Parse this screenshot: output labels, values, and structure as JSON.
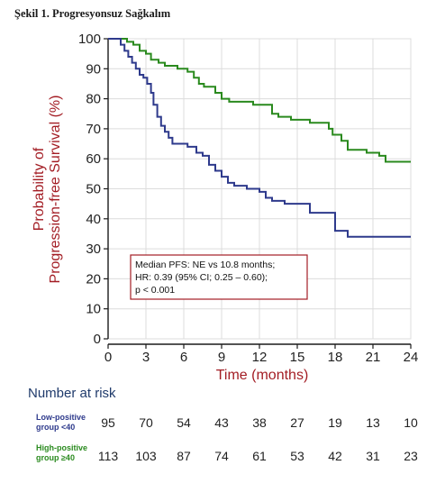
{
  "caption": "Şekil 1. Progresyonsuz Sağkalım",
  "chart_data": {
    "type": "line",
    "subtype": "kaplan-meier step",
    "ylabel_lines": [
      "Probability of",
      "Progression-free Survival  (%)"
    ],
    "xlabel": "Time (months)",
    "xlim": [
      0,
      24
    ],
    "ylim": [
      0,
      100
    ],
    "x_ticks": [
      0,
      3,
      6,
      9,
      12,
      15,
      18,
      21,
      24
    ],
    "y_ticks": [
      0,
      10,
      20,
      30,
      40,
      50,
      60,
      70,
      80,
      90,
      100
    ],
    "grid": true,
    "series": [
      {
        "color": "#2a8a1e",
        "points": [
          [
            0,
            100
          ],
          [
            1.5,
            99
          ],
          [
            2,
            98
          ],
          [
            2.5,
            96
          ],
          [
            3,
            95
          ],
          [
            3.4,
            93
          ],
          [
            4,
            92
          ],
          [
            4.5,
            91
          ],
          [
            5.5,
            90
          ],
          [
            6.3,
            89
          ],
          [
            6.8,
            87
          ],
          [
            7.2,
            85
          ],
          [
            7.6,
            84
          ],
          [
            8.5,
            82
          ],
          [
            9,
            80
          ],
          [
            9.6,
            79
          ],
          [
            11.5,
            78
          ],
          [
            13,
            75
          ],
          [
            13.5,
            74
          ],
          [
            14.5,
            73
          ],
          [
            16,
            72
          ],
          [
            17.5,
            70
          ],
          [
            17.8,
            68
          ],
          [
            18.5,
            66
          ],
          [
            19,
            63
          ],
          [
            20.5,
            62
          ],
          [
            21.5,
            61
          ],
          [
            22,
            59
          ],
          [
            24,
            59
          ]
        ]
      },
      {
        "color": "#2e3a8c",
        "points": [
          [
            0,
            100
          ],
          [
            1,
            98
          ],
          [
            1.3,
            96
          ],
          [
            1.6,
            94
          ],
          [
            1.9,
            92
          ],
          [
            2.2,
            90
          ],
          [
            2.5,
            88
          ],
          [
            2.8,
            87
          ],
          [
            3.1,
            85
          ],
          [
            3.4,
            82
          ],
          [
            3.6,
            78
          ],
          [
            3.9,
            74
          ],
          [
            4.2,
            71
          ],
          [
            4.5,
            69
          ],
          [
            4.8,
            67
          ],
          [
            5.1,
            65
          ],
          [
            6.3,
            64
          ],
          [
            7,
            62
          ],
          [
            7.5,
            61
          ],
          [
            8,
            58
          ],
          [
            8.5,
            56
          ],
          [
            9,
            54
          ],
          [
            9.5,
            52
          ],
          [
            10,
            51
          ],
          [
            11,
            50
          ],
          [
            12,
            49
          ],
          [
            12.5,
            47
          ],
          [
            13,
            46
          ],
          [
            14,
            45
          ],
          [
            16,
            42
          ],
          [
            18,
            36
          ],
          [
            19,
            34
          ],
          [
            24,
            34
          ]
        ]
      }
    ],
    "annotation_lines": [
      "Median PFS: NE vs 10.8 months;",
      "HR: 0.39 (95% CI; 0.25 – 0.60);",
      "p < 0.001"
    ]
  },
  "risk_table": {
    "title": "Number at risk",
    "groups": [
      {
        "label_lines": [
          "Low-positive",
          "group <40"
        ],
        "color": "#2e3a8c",
        "values": [
          "95",
          "70",
          "54",
          "43",
          "38",
          "27",
          "19",
          "13",
          "10"
        ]
      },
      {
        "label_lines": [
          "High-positive",
          "group ≥40"
        ],
        "color": "#2a8a1e",
        "values": [
          "113",
          "103",
          "87",
          "74",
          "61",
          "53",
          "42",
          "31",
          "23"
        ]
      }
    ]
  },
  "colors": {
    "axis_label": "#a31d24",
    "annotation_border": "#a31d24",
    "risk_title": "#1f3a6b"
  }
}
